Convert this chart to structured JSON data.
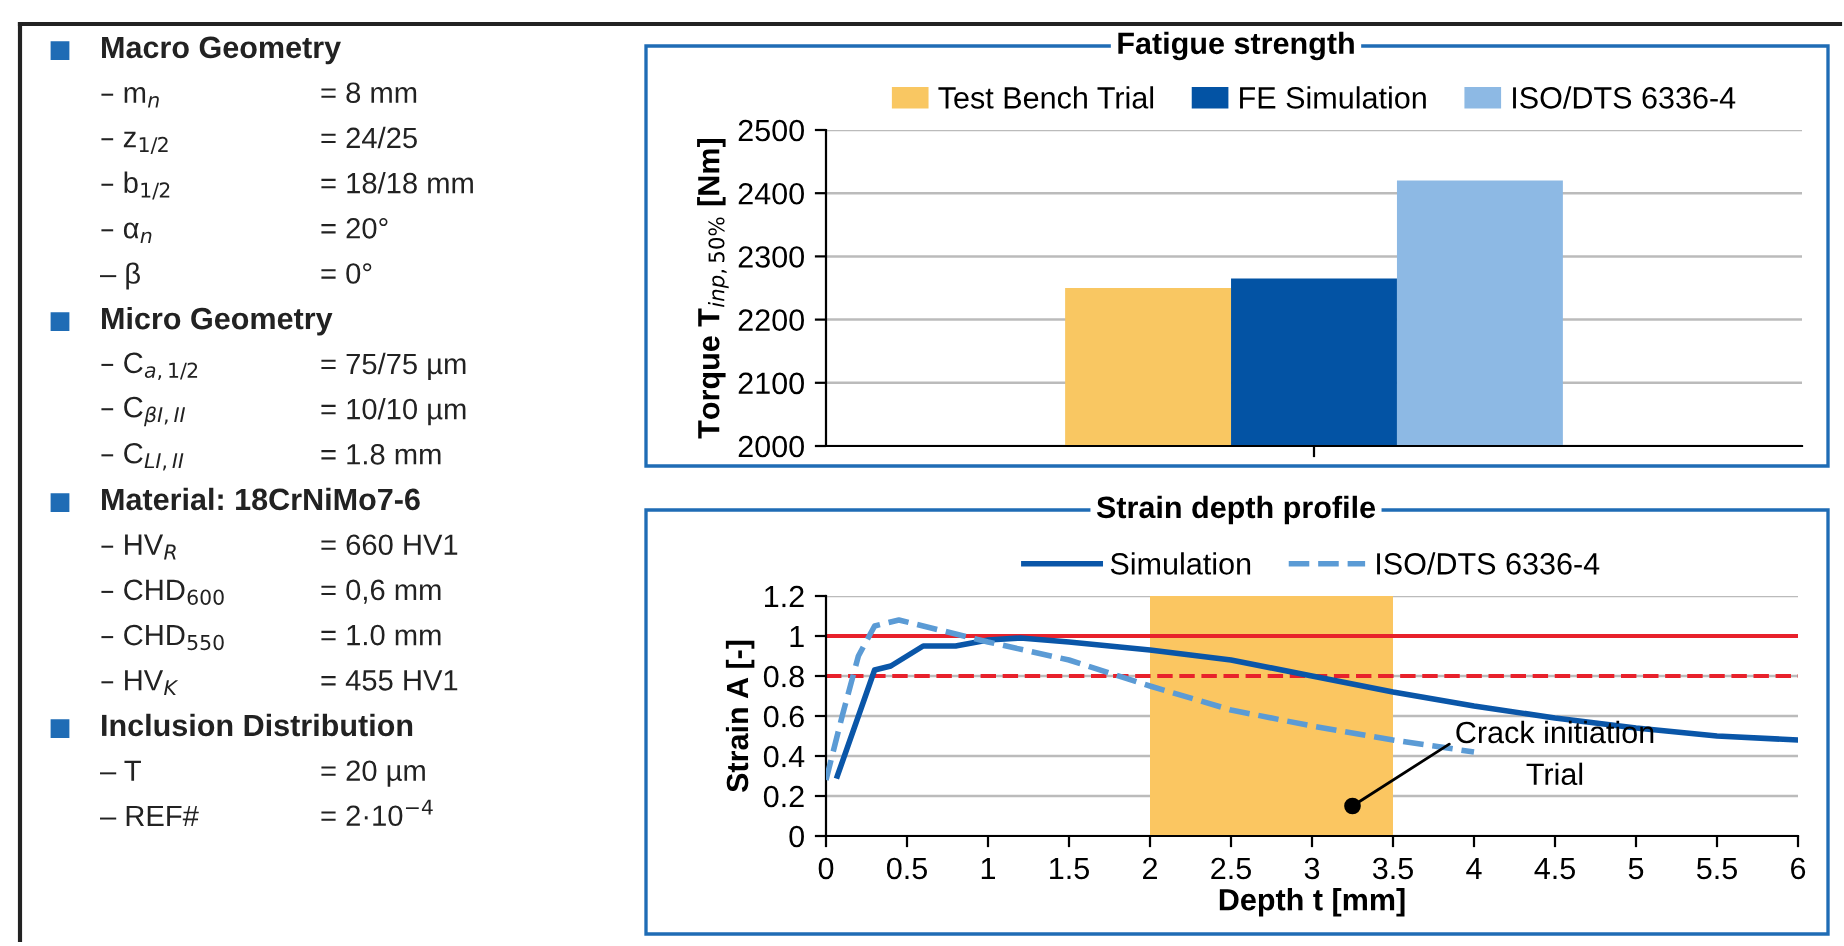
{
  "chart_data": [
    {
      "type": "other",
      "annotations": [
        "Macro Geometry",
        "– m$_{n}$ = 8 mm",
        "– z$_{1/2}$ = 24/25",
        "– b$_{1/2}$ = 18/18 mm",
        "– α$_{n}$ = 20°",
        "– β = 0°",
        "Micro Geometry",
        "– C$_{a,1/2}$ = 75/75 µm",
        "– C$_{βI,II}$ = 10/10 µm",
        "– C$_{LI,II}$ = 1.8 mm",
        "Material: 18CrNiMo7-6",
        "– HV$_{R}$ = 660 HV1",
        "– CHD$_{600}$ = 0,6 mm",
        "– CHD$_{550}$ = 1.0 mm",
        "– HV$_{K}$ = 455 HV1",
        "Inclusion Distribution",
        "– T = 20 µm",
        "– REF# = 2·10$^{−4}$"
      ]
    },
    {
      "type": "bar",
      "title": "Fatigue strength",
      "ylabel": "Torque T$_{inp,50%}$ [Nm]",
      "categories": [
        null
      ],
      "series": [
        {
          "name": "Test Bench Trial",
          "color": "#f9c762",
          "values": [
            2250
          ]
        },
        {
          "name": "FE Simulation",
          "color": "#0353a4",
          "values": [
            2265
          ]
        },
        {
          "name": "ISO/DTS 6336-4",
          "color": "#8db9e4",
          "values": [
            2420
          ]
        }
      ],
      "ylim": [
        2000,
        2500
      ],
      "yticks": [
        2000,
        2100,
        2200,
        2300,
        2400,
        2500
      ],
      "grid": "y",
      "legend": "top"
    },
    {
      "type": "line",
      "title": "Strain depth profile",
      "xlabel": "Depth t [mm]",
      "ylabel": "Strain A [-]",
      "series": [
        {
          "name": "Simulation",
          "color": "#0a56a8",
          "line_style": "solid",
          "x": [
            0.07,
            0.3,
            0.4,
            0.5,
            0.6,
            0.8,
            1.0,
            1.2,
            1.5,
            2.0,
            2.5,
            3.0,
            3.5,
            4.0,
            4.5,
            5.0,
            5.5,
            6.0
          ],
          "values": [
            0.3,
            0.83,
            0.85,
            0.9,
            0.95,
            0.95,
            0.98,
            0.99,
            0.97,
            0.93,
            0.88,
            0.8,
            0.72,
            0.65,
            0.59,
            0.54,
            0.5,
            0.48
          ]
        },
        {
          "name": "ISO/DTS 6336-4",
          "color": "#5b9bd5",
          "line_style": "dashed",
          "x": [
            0.0,
            0.1,
            0.2,
            0.3,
            0.45,
            0.7,
            1.0,
            1.5,
            2.0,
            2.5,
            3.0,
            3.5,
            4.0
          ],
          "values": [
            0.28,
            0.6,
            0.9,
            1.05,
            1.08,
            1.03,
            0.97,
            0.88,
            0.75,
            0.63,
            0.55,
            0.48,
            0.42
          ]
        }
      ],
      "xlim": [
        0,
        6
      ],
      "xticks": [
        0,
        0.5,
        1,
        1.5,
        2,
        2.5,
        3,
        3.5,
        4,
        4.5,
        5,
        5.5,
        6
      ],
      "ylim": [
        0,
        1.2
      ],
      "yticks": [
        0,
        0.2,
        0.4,
        0.6,
        0.8,
        1,
        1.2
      ],
      "grid": "y",
      "legend": "top",
      "marker": "none",
      "ref_lines": [
        {
          "axis": "y",
          "value": 1,
          "color": "#e8212b",
          "line_style": "solid"
        },
        {
          "axis": "y",
          "value": 0.8,
          "color": "#e8212b",
          "line_style": "dashed"
        }
      ],
      "bands": [
        {
          "axis": "x",
          "from": 2,
          "to": 3.5,
          "color": "#fbc661"
        }
      ],
      "annotations": [
        {
          "text": "Crack initiation\nTrial",
          "x": 3.25,
          "y": 0.15
        }
      ]
    }
  ]
}
